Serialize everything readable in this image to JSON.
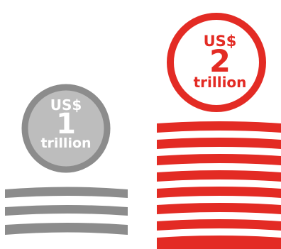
{
  "coins": [
    {
      "currency": "US$",
      "amount": "1",
      "unit": "trillion",
      "color": "#8c8c8c",
      "fill": "#bdbdbd",
      "stack_layers": 3
    },
    {
      "currency": "US$",
      "amount": "2",
      "unit": "trillion",
      "color": "#e32b24",
      "fill": "#ffffff",
      "stack_layers": 8
    }
  ]
}
